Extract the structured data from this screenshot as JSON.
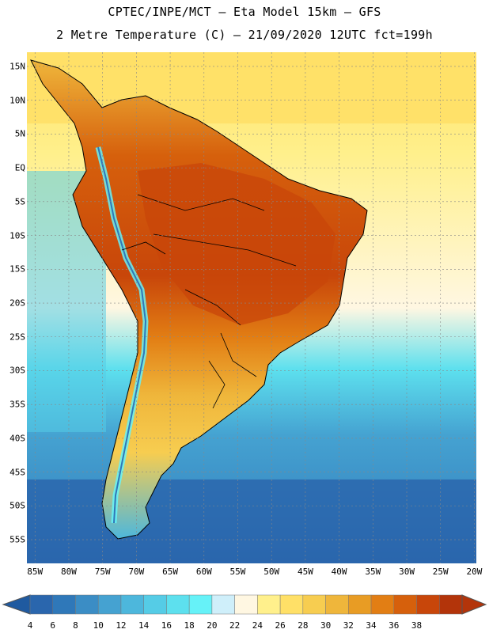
{
  "header": {
    "title_line1": "CPTEC/INPE/MCT –  Eta Model 15km – GFS",
    "title_line2": "2 Metre Temperature (C) – 21/09/2020 12UTC fct=199h"
  },
  "map": {
    "lat_labels": [
      "15N",
      "10N",
      "5N",
      "EQ",
      "5S",
      "10S",
      "15S",
      "20S",
      "25S",
      "30S",
      "35S",
      "40S",
      "45S",
      "50S",
      "55S"
    ],
    "lon_labels": [
      "85W",
      "80W",
      "75W",
      "70W",
      "65W",
      "60W",
      "55W",
      "50W",
      "45W",
      "40W",
      "35W",
      "30W",
      "25W",
      "20W"
    ],
    "lat_values": [
      15,
      10,
      5,
      0,
      -5,
      -10,
      -15,
      -20,
      -25,
      -30,
      -35,
      -40,
      -45,
      -50,
      -55
    ],
    "lon_values": [
      -85,
      -80,
      -75,
      -70,
      -65,
      -60,
      -55,
      -50,
      -45,
      -40,
      -35,
      -30,
      -25,
      -20
    ],
    "region": "South America"
  },
  "colorbar": {
    "labels": [
      "4",
      "6",
      "8",
      "10",
      "12",
      "14",
      "16",
      "18",
      "20",
      "22",
      "24",
      "26",
      "28",
      "30",
      "32",
      "34",
      "36",
      "38"
    ],
    "under_color": "#1f5aa0",
    "over_color": "#b3340a",
    "colors": [
      "#2a66ad",
      "#2f78b9",
      "#3b8dc5",
      "#45a2d1",
      "#4db7dc",
      "#55cce6",
      "#5de0ee",
      "#66f2f8",
      "#cfeffa",
      "#fff7e2",
      "#fff08c",
      "#ffe067",
      "#f7cd50",
      "#efb63b",
      "#e89c24",
      "#e27e14",
      "#d6600c",
      "#c8460a",
      "#b3340a"
    ]
  }
}
